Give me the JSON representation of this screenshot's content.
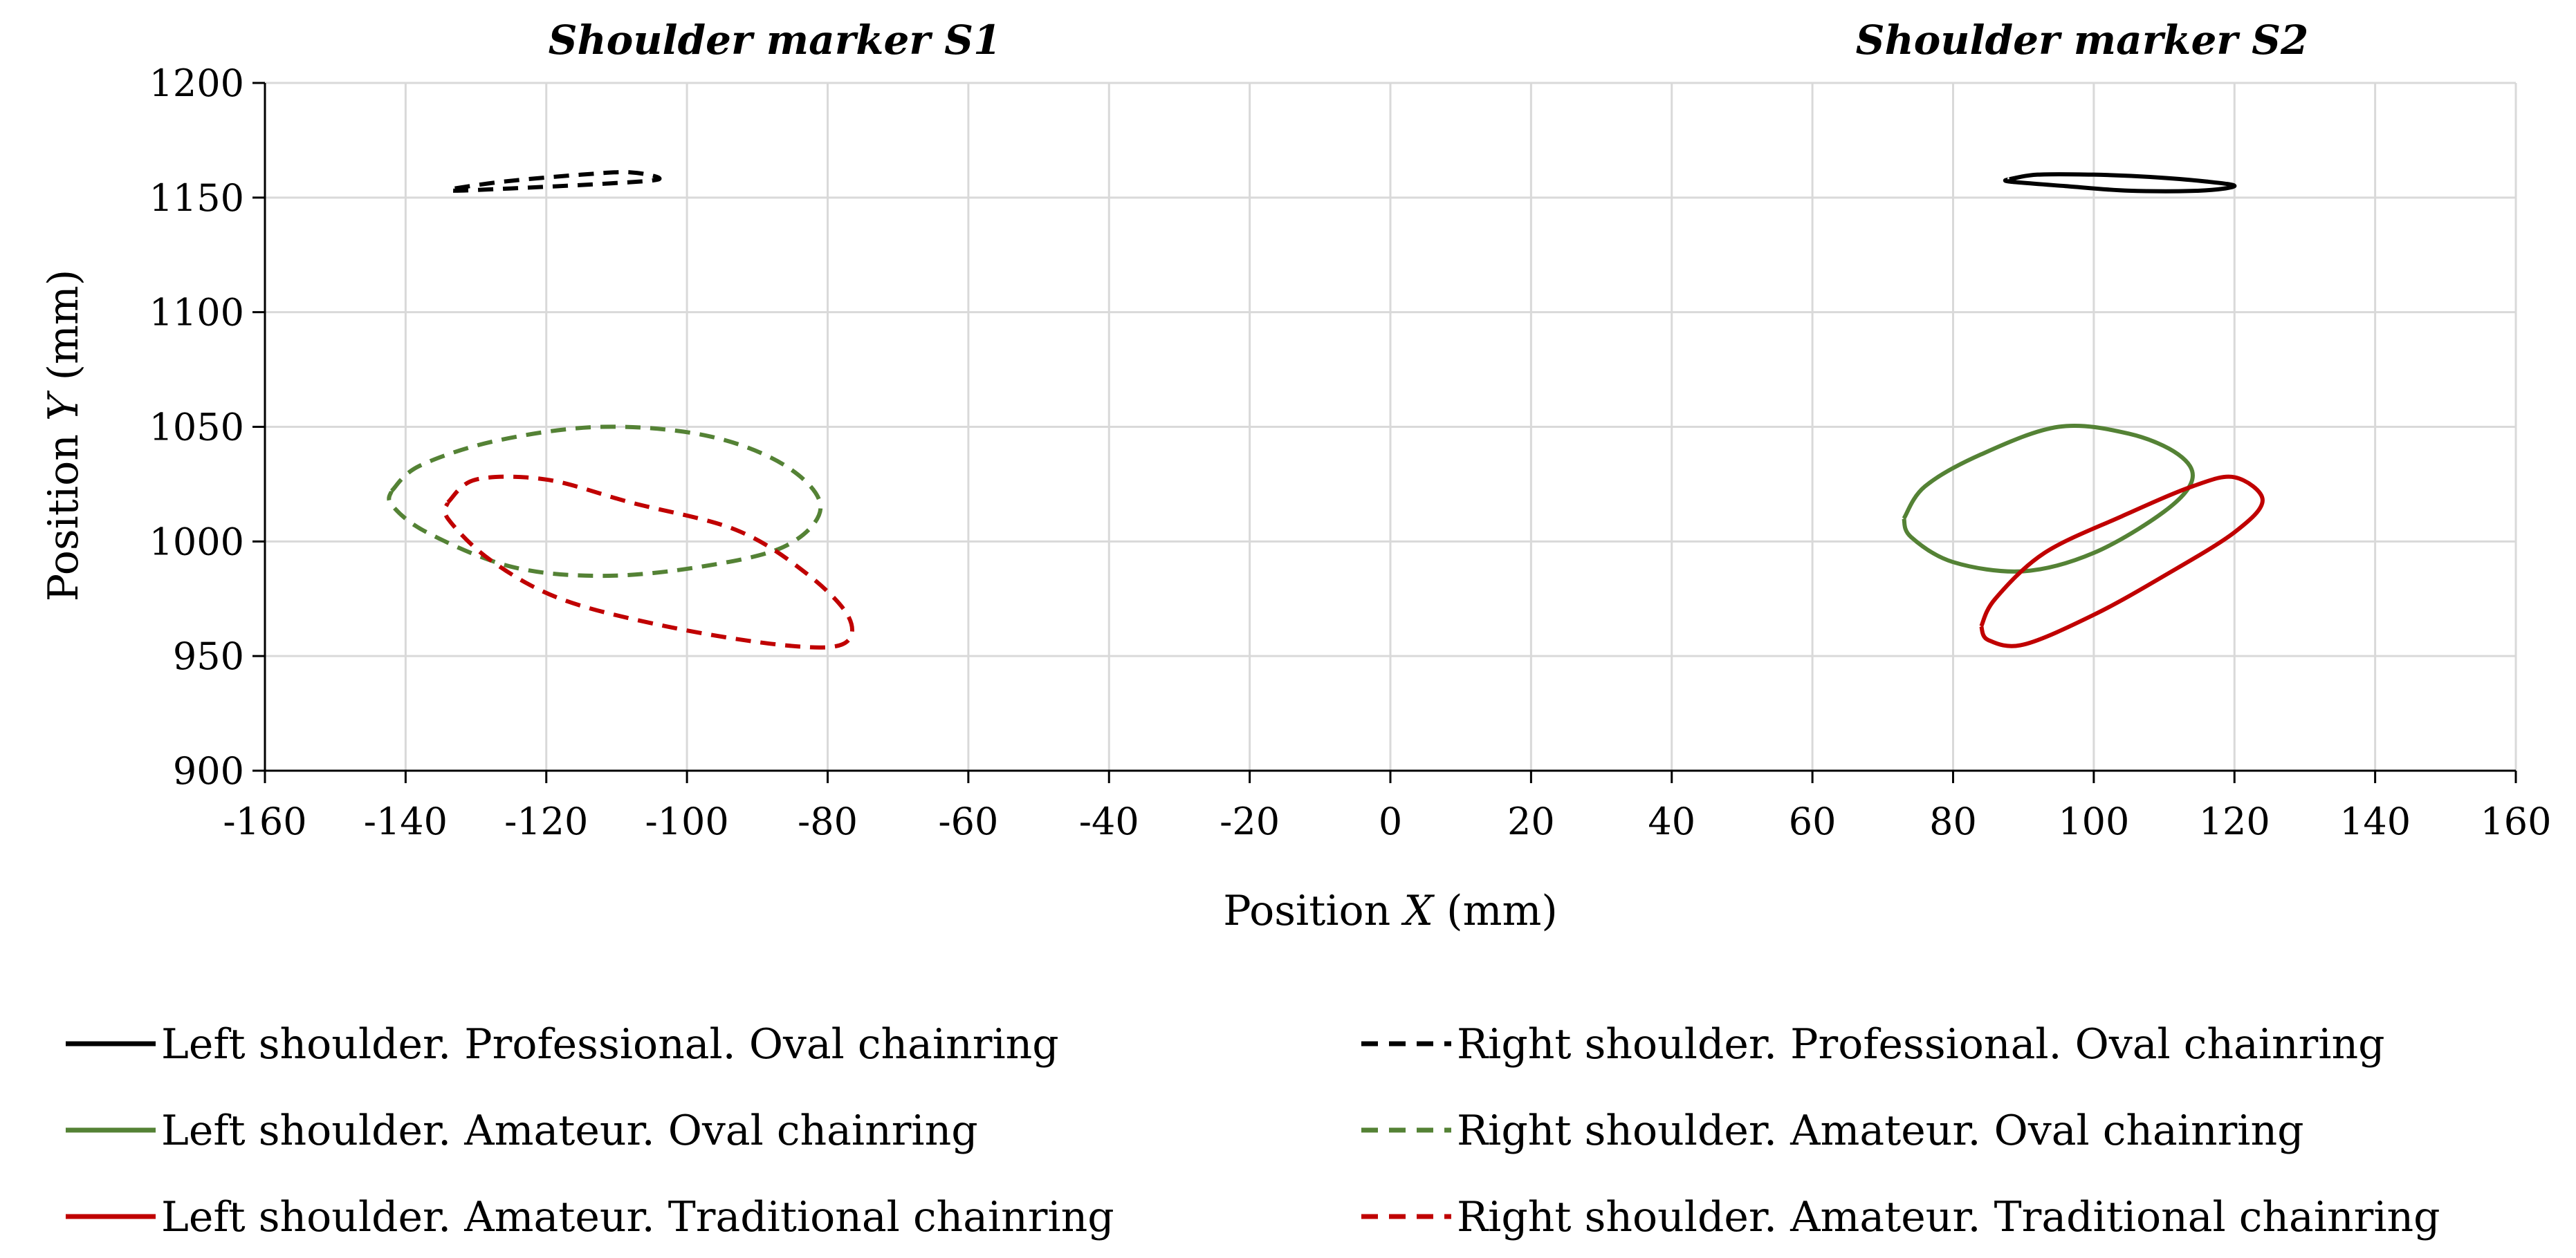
{
  "chart_data": {
    "type": "scatter",
    "titles": [
      "Shoulder marker S1",
      "Shoulder marker S2"
    ],
    "xlabel_prefix": "Position ",
    "xlabel_var": "X",
    "xlabel_suffix": " (mm)",
    "ylabel_prefix": "Position ",
    "ylabel_var": "Y",
    "ylabel_suffix": " (mm)",
    "xlim": [
      -160,
      160
    ],
    "ylim": [
      900,
      1200
    ],
    "x_ticks": [
      -160,
      -140,
      -120,
      -100,
      -80,
      -60,
      -40,
      -20,
      0,
      20,
      40,
      60,
      80,
      100,
      120,
      140,
      160
    ],
    "y_ticks": [
      900,
      950,
      1000,
      1050,
      1100,
      1150,
      1200
    ],
    "grid": true,
    "legend_position": "bottom",
    "series": [
      {
        "name": "Left shoulder. Professional. Oval chainring",
        "color": "#000000",
        "dash": "solid",
        "points": [
          [
            88,
            1158
          ],
          [
            92,
            1160
          ],
          [
            100,
            1160
          ],
          [
            108,
            1159
          ],
          [
            116,
            1157
          ],
          [
            120,
            1155
          ],
          [
            115,
            1153
          ],
          [
            105,
            1153
          ],
          [
            96,
            1155
          ],
          [
            88,
            1157
          ],
          [
            88,
            1158
          ]
        ]
      },
      {
        "name": "Right shoulder. Professional. Oval chainring",
        "color": "#000000",
        "dash": "dashed",
        "points": [
          [
            -133,
            1154
          ],
          [
            -126,
            1157
          ],
          [
            -115,
            1160
          ],
          [
            -108,
            1161
          ],
          [
            -104,
            1158
          ],
          [
            -112,
            1156
          ],
          [
            -125,
            1154
          ],
          [
            -133,
            1153
          ],
          [
            -133,
            1154
          ]
        ]
      },
      {
        "name": "Left shoulder. Amateur. Oval chainring",
        "color": "#548235",
        "dash": "solid",
        "points": [
          [
            73,
            1010
          ],
          [
            76,
            1024
          ],
          [
            84,
            1038
          ],
          [
            95,
            1050
          ],
          [
            105,
            1047
          ],
          [
            112,
            1038
          ],
          [
            114,
            1027
          ],
          [
            110,
            1013
          ],
          [
            100,
            995
          ],
          [
            90,
            987
          ],
          [
            80,
            991
          ],
          [
            74,
            1002
          ],
          [
            73,
            1010
          ]
        ]
      },
      {
        "name": "Right shoulder. Amateur. Oval chainring",
        "color": "#548235",
        "dash": "dashed",
        "points": [
          [
            -142,
            1022
          ],
          [
            -138,
            1033
          ],
          [
            -127,
            1044
          ],
          [
            -112,
            1050
          ],
          [
            -97,
            1046
          ],
          [
            -86,
            1033
          ],
          [
            -81,
            1015
          ],
          [
            -86,
            998
          ],
          [
            -98,
            989
          ],
          [
            -112,
            985
          ],
          [
            -125,
            989
          ],
          [
            -137,
            1004
          ],
          [
            -142,
            1016
          ],
          [
            -142,
            1022
          ]
        ]
      },
      {
        "name": "Left shoulder. Amateur. Traditional chainring",
        "color": "#c00000",
        "dash": "solid",
        "points": [
          [
            84,
            963
          ],
          [
            86,
            975
          ],
          [
            93,
            995
          ],
          [
            104,
            1011
          ],
          [
            114,
            1024
          ],
          [
            120,
            1028
          ],
          [
            124,
            1018
          ],
          [
            120,
            1004
          ],
          [
            110,
            985
          ],
          [
            100,
            968
          ],
          [
            90,
            955
          ],
          [
            85,
            957
          ],
          [
            84,
            963
          ]
        ]
      },
      {
        "name": "Right shoulder. Amateur. Traditional chainring",
        "color": "#c00000",
        "dash": "dashed",
        "points": [
          [
            -134,
            1017
          ],
          [
            -130,
            1027
          ],
          [
            -120,
            1027
          ],
          [
            -108,
            1017
          ],
          [
            -93,
            1005
          ],
          [
            -83,
            986
          ],
          [
            -77,
            967
          ],
          [
            -78,
            955
          ],
          [
            -87,
            955
          ],
          [
            -103,
            963
          ],
          [
            -118,
            975
          ],
          [
            -128,
            992
          ],
          [
            -134,
            1010
          ],
          [
            -134,
            1017
          ]
        ]
      }
    ]
  }
}
